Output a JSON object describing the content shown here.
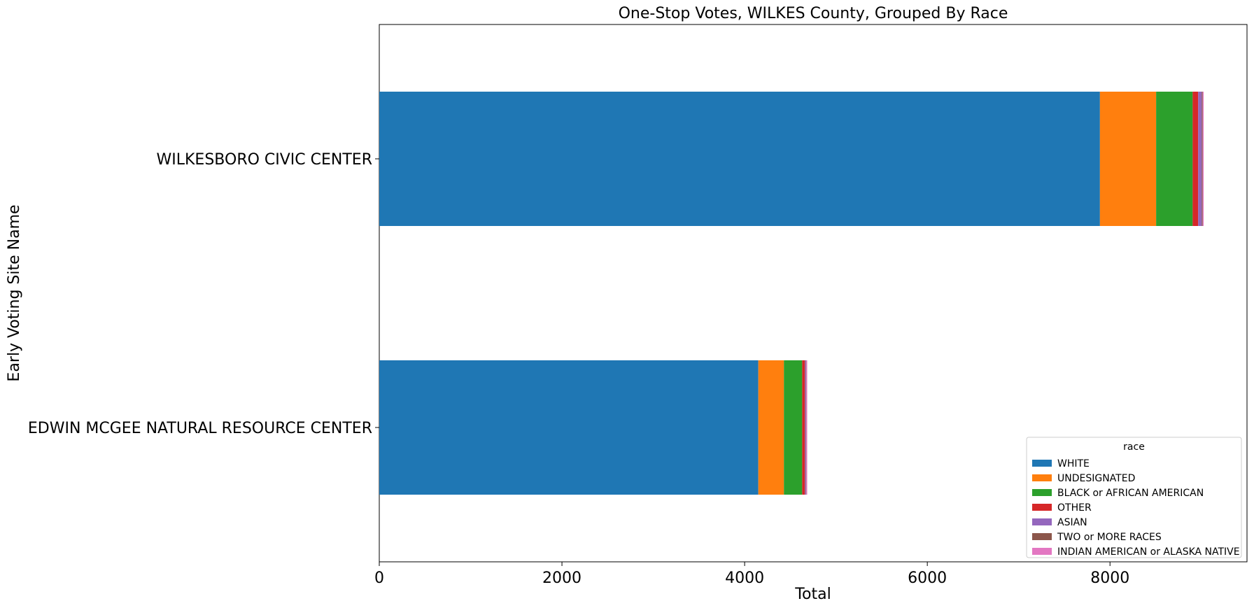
{
  "chart_data": {
    "type": "bar",
    "orientation": "horizontal",
    "stacked": true,
    "title": "One-Stop Votes, WILKES County, Grouped By Race",
    "xlabel": "Total",
    "ylabel": "Early Voting Site Name",
    "xlim": [
      0,
      9500
    ],
    "xticks": [
      0,
      2000,
      4000,
      6000,
      8000
    ],
    "xtick_labels": [
      "0",
      "2000",
      "4000",
      "6000",
      "8000"
    ],
    "categories": [
      "WILKESBORO CIVIC CENTER",
      "EDWIN MCGEE NATURAL RESOURCE CENTER"
    ],
    "series": [
      {
        "name": "WHITE",
        "color": "#1f77b4",
        "values": [
          7890,
          4150
        ]
      },
      {
        "name": "UNDESIGNATED",
        "color": "#ff7f0e",
        "values": [
          615,
          280
        ]
      },
      {
        "name": "BLACK or AFRICAN AMERICAN",
        "color": "#2ca02c",
        "values": [
          400,
          200
        ]
      },
      {
        "name": "OTHER",
        "color": "#d62728",
        "values": [
          60,
          30
        ]
      },
      {
        "name": "ASIAN",
        "color": "#9467bd",
        "values": [
          40,
          10
        ]
      },
      {
        "name": "TWO or MORE RACES",
        "color": "#8c564b",
        "values": [
          10,
          5
        ]
      },
      {
        "name": "INDIAN AMERICAN or ALASKA NATIVE",
        "color": "#e377c2",
        "values": [
          10,
          10
        ]
      }
    ],
    "legend": {
      "title": "race",
      "position": "lower-right"
    },
    "grid": false
  }
}
